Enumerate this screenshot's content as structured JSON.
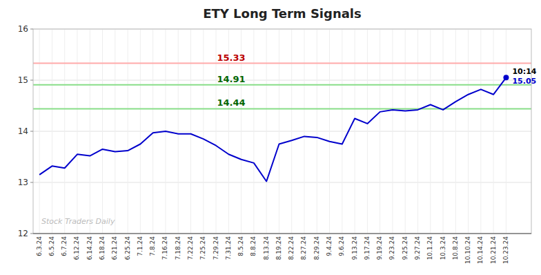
{
  "chart_data": {
    "type": "line",
    "title": "ETY Long Term Signals",
    "color": "#0000CC",
    "grid": true,
    "ylim": [
      12,
      16
    ],
    "yticks": [
      12,
      13,
      14,
      15,
      16
    ],
    "categories": [
      "6.3.24",
      "6.5.24",
      "6.7.24",
      "6.12.24",
      "6.14.24",
      "6.18.24",
      "6.21.24",
      "6.25.24",
      "7.1.24",
      "7.8.24",
      "7.16.24",
      "7.18.24",
      "7.22.24",
      "7.25.24",
      "7.29.24",
      "7.31.24",
      "8.5.24",
      "8.8.24",
      "8.13.24",
      "8.19.24",
      "8.22.24",
      "8.27.24",
      "8.29.24",
      "9.4.24",
      "9.6.24",
      "9.13.24",
      "9.17.24",
      "9.19.24",
      "9.23.24",
      "9.25.24",
      "9.27.24",
      "10.1.24",
      "10.3.24",
      "10.8.24",
      "10.10.24",
      "10.14.24",
      "10.21.24",
      "10.23.24"
    ],
    "values": [
      13.15,
      13.32,
      13.28,
      13.55,
      13.52,
      13.65,
      13.6,
      13.62,
      13.75,
      13.97,
      14.0,
      13.95,
      13.95,
      13.85,
      13.72,
      13.55,
      13.45,
      13.38,
      13.02,
      13.75,
      13.82,
      13.9,
      13.88,
      13.8,
      13.75,
      14.25,
      14.15,
      14.38,
      14.42,
      14.4,
      14.42,
      14.52,
      14.42,
      14.58,
      14.72,
      14.82,
      14.72,
      15.05
    ],
    "reference_lines": [
      {
        "value": 15.33,
        "color": "#ffaaaa",
        "label_color": "#bb0000"
      },
      {
        "value": 14.91,
        "color": "#88dd88",
        "label_color": "#006600"
      },
      {
        "value": 14.44,
        "color": "#88dd88",
        "label_color": "#006600"
      }
    ],
    "last_label": "10:14",
    "last_value": 15.05,
    "watermark": "Stock Traders Daily"
  }
}
